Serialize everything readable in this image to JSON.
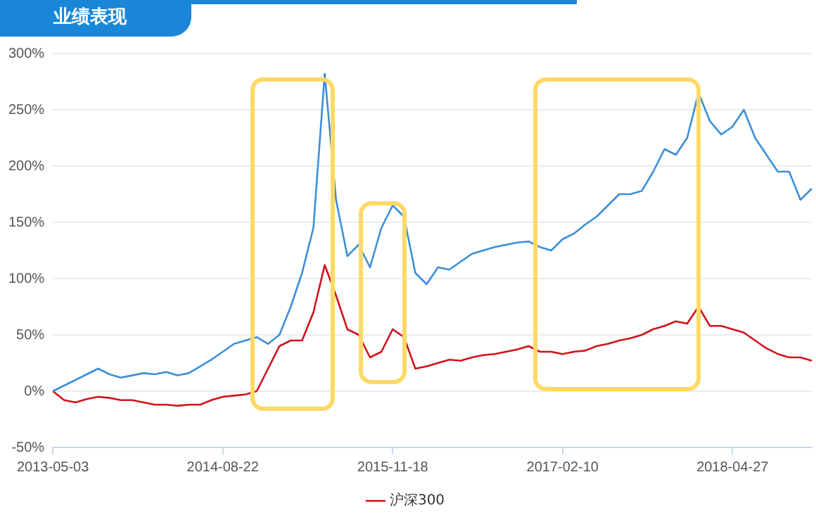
{
  "chart_data": {
    "type": "line",
    "title": "业绩表现",
    "categories": [
      "2013-05-03",
      null,
      null,
      null,
      null,
      null,
      null,
      null,
      null,
      null,
      null,
      null,
      null,
      null,
      null,
      "2014-08-22",
      null,
      null,
      null,
      null,
      null,
      null,
      null,
      null,
      null,
      null,
      null,
      null,
      null,
      null,
      "2015-11-18",
      null,
      null,
      null,
      null,
      null,
      null,
      null,
      null,
      null,
      null,
      null,
      null,
      null,
      null,
      "2017-02-10",
      null,
      null,
      null,
      null,
      null,
      null,
      null,
      null,
      null,
      null,
      null,
      null,
      null,
      null,
      "2018-04-27",
      null,
      null,
      null,
      null,
      null,
      null,
      null
    ],
    "series": [
      {
        "color": "#3a8fd9",
        "values": [
          0,
          5,
          10,
          15,
          20,
          15,
          12,
          14,
          16,
          15,
          17,
          14,
          16,
          22,
          28,
          35,
          42,
          45,
          48,
          42,
          50,
          75,
          105,
          145,
          282,
          170,
          120,
          130,
          110,
          145,
          165,
          155,
          105,
          95,
          110,
          108,
          115,
          122,
          125,
          128,
          130,
          132,
          133,
          128,
          125,
          135,
          140,
          148,
          155,
          165,
          175,
          175,
          178,
          195,
          215,
          210,
          225,
          265,
          240,
          228,
          235,
          250,
          225,
          210,
          195,
          195,
          170,
          180
        ]
      },
      {
        "name": "沪深300",
        "color": "#d0121b",
        "values": [
          0,
          -8,
          -10,
          -7,
          -5,
          -6,
          -8,
          -8,
          -10,
          -12,
          -12,
          -13,
          -12,
          -12,
          -8,
          -5,
          -4,
          -3,
          0,
          20,
          40,
          45,
          45,
          70,
          112,
          85,
          55,
          50,
          30,
          35,
          55,
          48,
          20,
          22,
          25,
          28,
          27,
          30,
          32,
          33,
          35,
          37,
          40,
          35,
          35,
          33,
          35,
          36,
          40,
          42,
          45,
          47,
          50,
          55,
          58,
          62,
          60,
          75,
          58,
          58,
          55,
          52,
          45,
          38,
          33,
          30,
          30,
          27
        ]
      }
    ],
    "ylim": [
      -50,
      300
    ],
    "yticks": [
      {
        "value": -50,
        "label": "-50%"
      },
      {
        "value": 0,
        "label": "0%"
      },
      {
        "value": 50,
        "label": "50%"
      },
      {
        "value": 100,
        "label": "100%"
      },
      {
        "value": 150,
        "label": "150%"
      },
      {
        "value": 200,
        "label": "200%"
      },
      {
        "value": 250,
        "label": "250%"
      },
      {
        "value": 300,
        "label": "300%"
      }
    ],
    "grid": "y",
    "legend": "bottom"
  }
}
